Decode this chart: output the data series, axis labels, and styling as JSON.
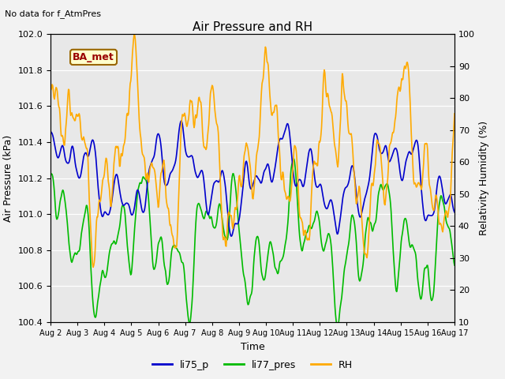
{
  "title": "Air Pressure and RH",
  "subtitle": "No data for f_AtmPres",
  "xlabel": "Time",
  "ylabel_left": "Air Pressure (kPa)",
  "ylabel_right": "Relativity Humidity (%)",
  "legend_labels": [
    "li75_p",
    "li77_pres",
    "RH"
  ],
  "legend_colors": [
    "#0000cc",
    "#00bb00",
    "#ffaa00"
  ],
  "box_label": "BA_met",
  "box_facecolor": "#ffffcc",
  "box_edgecolor": "#996600",
  "ylim_left": [
    100.4,
    102.0
  ],
  "ylim_right": [
    10,
    100
  ],
  "yticks_left": [
    100.4,
    100.6,
    100.8,
    101.0,
    101.2,
    101.4,
    101.6,
    101.8,
    102.0
  ],
  "yticks_right": [
    10,
    20,
    30,
    40,
    50,
    60,
    70,
    80,
    90,
    100
  ],
  "xtick_labels": [
    "Aug 2",
    "Aug 3",
    "Aug 4",
    "Aug 5",
    "Aug 6",
    "Aug 7",
    "Aug 8",
    "Aug 9",
    "Aug 10",
    "Aug 11",
    "Aug 12",
    "Aug 13",
    "Aug 14",
    "Aug 15",
    "Aug 16",
    "Aug 17"
  ],
  "fig_bg_color": "#f2f2f2",
  "plot_bg_color": "#e8e8e8",
  "grid_color": "#ffffff",
  "line_width": 1.2
}
